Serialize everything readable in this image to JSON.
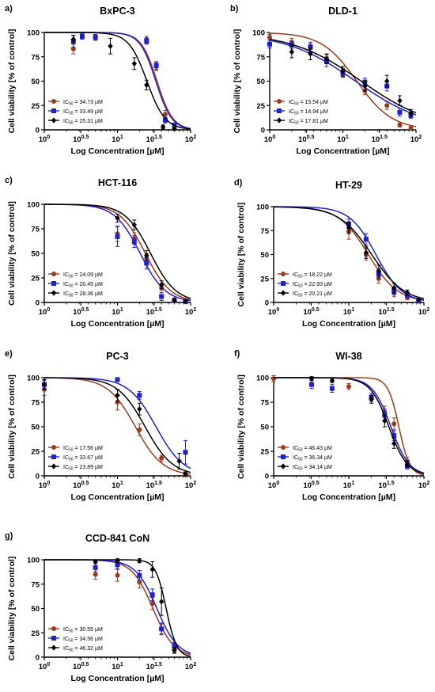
{
  "colors": {
    "series_red": "#9c3a1c",
    "series_blue": "#1f1fd6",
    "series_black": "#000000",
    "axis": "#000000"
  },
  "x_tick_labels": [
    "10^0",
    "10^0.5",
    "10^1",
    "10^1.5",
    "10^2"
  ],
  "chart_data": [
    {
      "panel": "a)",
      "title": "BxPC-3",
      "type": "scatter",
      "xlabel": "Log Concentration [µM]",
      "ylabel": "Cell viability [% of control]",
      "xscale": "log10",
      "xlim": [
        1,
        100
      ],
      "ylim": [
        0,
        100
      ],
      "yticks": [
        0,
        25,
        50,
        75,
        100
      ],
      "xticks": [
        1,
        3.16,
        10,
        31.6,
        100
      ],
      "legend_position": "bottom-left",
      "series": [
        {
          "legend": "IC50 = 34.73 µM",
          "ic50": 34.73,
          "hill": 4.0,
          "points": [
            [
              2.5,
              83,
              5
            ],
            [
              5,
              95,
              3
            ],
            [
              25,
              93,
              3
            ],
            [
              34,
              65,
              4
            ],
            [
              45,
              16,
              4
            ],
            [
              60,
              4,
              2
            ]
          ]
        },
        {
          "legend": "IC50 = 33.49 µM",
          "ic50": 33.49,
          "hill": 4.0,
          "points": [
            [
              2.5,
              91,
              6
            ],
            [
              3.3,
              96,
              3
            ],
            [
              5,
              95,
              3
            ],
            [
              25,
              91,
              3
            ],
            [
              34,
              66,
              4
            ],
            [
              45,
              10,
              3
            ],
            [
              60,
              5,
              2
            ]
          ]
        },
        {
          "legend": "IC50 = 25.31 µM",
          "ic50": 25.31,
          "hill": 3.5,
          "points": [
            [
              2.5,
              93,
              4
            ],
            [
              8,
              86,
              8
            ],
            [
              17,
              68,
              6
            ],
            [
              25,
              46,
              5
            ],
            [
              42,
              3,
              2
            ],
            [
              60,
              1,
              1
            ]
          ]
        }
      ]
    },
    {
      "panel": "b)",
      "title": "DLD-1",
      "type": "scatter",
      "xlabel": "Log Concentration  [µM]",
      "ylabel": "Cell viability [% of control]",
      "xscale": "log10",
      "xlim": [
        1,
        100
      ],
      "ylim": [
        0,
        100
      ],
      "yticks": [
        0,
        25,
        50,
        75,
        100
      ],
      "xticks": [
        1,
        3.16,
        10,
        31.6,
        100
      ],
      "legend_position": "bottom-left",
      "series": [
        {
          "legend": "IC50 = 15.54 µM",
          "ic50": 15.54,
          "hill": 1.8,
          "points": [
            [
              1,
              95,
              3
            ],
            [
              2,
              90,
              4
            ],
            [
              3.6,
              84,
              4
            ],
            [
              6,
              73,
              4
            ],
            [
              10,
              60,
              3
            ],
            [
              20,
              40,
              4
            ],
            [
              40,
              25,
              4
            ],
            [
              60,
              5,
              2
            ],
            [
              85,
              2,
              1
            ]
          ]
        },
        {
          "legend": "IC50 = 14.94 µM",
          "ic50": 14.94,
          "hill": 0.9,
          "points": [
            [
              1,
              88,
              4
            ],
            [
              2,
              87,
              4
            ],
            [
              3.6,
              85,
              5
            ],
            [
              6,
              70,
              5
            ],
            [
              10,
              58,
              4
            ],
            [
              20,
              49,
              4
            ],
            [
              40,
              45,
              5
            ],
            [
              60,
              18,
              4
            ],
            [
              85,
              15,
              3
            ]
          ]
        },
        {
          "legend": "IC50 = 17.81 µM",
          "ic50": 17.81,
          "hill": 0.9,
          "points": [
            [
              2,
              80,
              6
            ],
            [
              3.6,
              78,
              6
            ],
            [
              6,
              73,
              5
            ],
            [
              10,
              60,
              5
            ],
            [
              20,
              45,
              5
            ],
            [
              40,
              50,
              6
            ],
            [
              60,
              30,
              5
            ],
            [
              85,
              17,
              4
            ]
          ]
        }
      ]
    },
    {
      "panel": "c)",
      "title": "HCT-116",
      "type": "scatter",
      "xlabel": "Log Concentration [µM]",
      "ylabel": "Cell viability [% of control]",
      "xscale": "log10",
      "xlim": [
        1,
        100
      ],
      "ylim": [
        0,
        100
      ],
      "yticks": [
        0,
        25,
        50,
        75,
        100
      ],
      "xticks": [
        1,
        3.16,
        10,
        31.6,
        100
      ],
      "legend_position": "bottom-left",
      "series": [
        {
          "legend": "IC50 = 24.09 µM",
          "ic50": 24.09,
          "hill": 2.5,
          "points": [
            [
              10,
              70,
              8
            ],
            [
              17,
              65,
              6
            ],
            [
              25,
              45,
              5
            ],
            [
              40,
              15,
              3
            ],
            [
              60,
              3,
              1
            ],
            [
              85,
              1,
              1
            ]
          ]
        },
        {
          "legend": "IC50 = 20.45 µM",
          "ic50": 20.45,
          "hill": 2.5,
          "points": [
            [
              10,
              67,
              10
            ],
            [
              17,
              62,
              6
            ],
            [
              25,
              40,
              6
            ],
            [
              40,
              6,
              4
            ],
            [
              60,
              2,
              1
            ],
            [
              85,
              1,
              1
            ]
          ]
        },
        {
          "legend": "IC50 = 28.36 µM",
          "ic50": 28.36,
          "hill": 2.5,
          "points": [
            [
              10,
              86,
              4
            ],
            [
              17,
              79,
              5
            ],
            [
              25,
              48,
              5
            ],
            [
              40,
              18,
              4
            ],
            [
              60,
              2,
              1
            ],
            [
              85,
              1,
              1
            ]
          ]
        }
      ]
    },
    {
      "panel": "d)",
      "title": "HT-29",
      "type": "scatter",
      "xlabel": "Log Concentration [µM]",
      "ylabel": "Cell viability [% of control]",
      "xscale": "log10",
      "xlim": [
        1,
        100
      ],
      "ylim": [
        0,
        100
      ],
      "yticks": [
        0,
        25,
        50,
        75,
        100
      ],
      "xticks": [
        1,
        3.16,
        10,
        31.6,
        100
      ],
      "legend_position": "bottom-left",
      "series": [
        {
          "legend": "IC50 = 18.22 µM",
          "ic50": 18.22,
          "hill": 2.2,
          "points": [
            [
              10,
              74,
              8
            ],
            [
              17,
              50,
              6
            ],
            [
              25,
              25,
              5
            ],
            [
              40,
              10,
              4
            ],
            [
              60,
              5,
              2
            ],
            [
              85,
              1,
              1
            ]
          ]
        },
        {
          "legend": "IC50 = 22.93 µM",
          "ic50": 22.93,
          "hill": 2.5,
          "points": [
            [
              10,
              82,
              5
            ],
            [
              17,
              66,
              6
            ],
            [
              25,
              30,
              5
            ],
            [
              40,
              12,
              4
            ],
            [
              60,
              8,
              3
            ],
            [
              85,
              2,
              1
            ]
          ]
        },
        {
          "legend": "IC50 = 20.21 µM",
          "ic50": 20.21,
          "hill": 2.0,
          "points": [
            [
              10,
              78,
              6
            ],
            [
              17,
              52,
              6
            ],
            [
              25,
              33,
              6
            ],
            [
              40,
              15,
              5
            ],
            [
              60,
              10,
              3
            ],
            [
              85,
              3,
              1
            ]
          ]
        }
      ]
    },
    {
      "panel": "e)",
      "title": "PC-3",
      "type": "scatter",
      "xlabel": "Log Concentration [µM]",
      "ylabel": "Cell viability [% of control]",
      "xscale": "log10",
      "xlim": [
        1,
        100
      ],
      "ylim": [
        0,
        100
      ],
      "yticks": [
        0,
        25,
        50,
        75,
        100
      ],
      "xticks": [
        1,
        3.16,
        10,
        31.6,
        100
      ],
      "legend_position": "bottom-left",
      "series": [
        {
          "legend": "IC50 = 17.56 µM",
          "ic50": 17.56,
          "hill": 2.3,
          "points": [
            [
              1,
              88,
              6
            ],
            [
              10,
              75,
              8
            ],
            [
              20,
              47,
              6
            ],
            [
              40,
              18,
              3
            ],
            [
              85,
              1,
              1
            ]
          ]
        },
        {
          "legend": "IC50 = 33.67 µM",
          "ic50": 33.67,
          "hill": 2.3,
          "points": [
            [
              1,
              93,
              4
            ],
            [
              10,
              98,
              2
            ],
            [
              20,
              82,
              4
            ],
            [
              85,
              24,
              12
            ]
          ]
        },
        {
          "legend": "IC50 = 23.89 µM",
          "ic50": 23.89,
          "hill": 2.3,
          "points": [
            [
              1,
              93,
              5
            ],
            [
              10,
              82,
              6
            ],
            [
              20,
              68,
              6
            ],
            [
              70,
              15,
              8
            ],
            [
              85,
              2,
              2
            ]
          ]
        }
      ]
    },
    {
      "panel": "f)",
      "title": "WI-38",
      "type": "scatter",
      "xlabel": "Log Concentration [µM]",
      "ylabel": "Cell viability [% of control]",
      "xscale": "log10",
      "xlim": [
        1,
        100
      ],
      "ylim": [
        0,
        100
      ],
      "yticks": [
        0,
        25,
        50,
        75,
        100
      ],
      "xticks": [
        1,
        3.16,
        10,
        31.6,
        100
      ],
      "legend_position": "bottom-left",
      "series": [
        {
          "legend": "IC50 = 46.43 µM",
          "ic50": 46.43,
          "hill": 6.0,
          "points": [
            [
              1,
              99,
              3
            ],
            [
              10,
              91,
              3
            ],
            [
              20,
              80,
              4
            ],
            [
              30,
              65,
              6
            ],
            [
              40,
              53,
              6
            ],
            [
              60,
              15,
              4
            ]
          ]
        },
        {
          "legend": "IC50 = 36.34 µM",
          "ic50": 36.34,
          "hill": 3.5,
          "points": [
            [
              3.2,
              93,
              4
            ],
            [
              6,
              89,
              4
            ],
            [
              20,
              80,
              4
            ],
            [
              30,
              62,
              6
            ],
            [
              40,
              41,
              5
            ],
            [
              60,
              10,
              3
            ]
          ]
        },
        {
          "legend": "IC50 = 34.14 µM",
          "ic50": 34.14,
          "hill": 3.5,
          "points": [
            [
              3.2,
              99,
              2
            ],
            [
              6,
              97,
              2
            ],
            [
              20,
              78,
              4
            ],
            [
              30,
              56,
              6
            ],
            [
              40,
              33,
              5
            ],
            [
              60,
              12,
              3
            ]
          ]
        }
      ]
    },
    {
      "panel": "g)",
      "title": "CCD-841 CoN",
      "type": "scatter",
      "xlabel": "Log Concentration [µM]",
      "ylabel": "Cell viability [% of control]",
      "xscale": "log10",
      "xlim": [
        1,
        100
      ],
      "ylim": [
        0,
        100
      ],
      "yticks": [
        0,
        25,
        50,
        75,
        100
      ],
      "xticks": [
        1,
        3.16,
        10,
        31.6,
        100
      ],
      "legend_position": "bottom-left",
      "series": [
        {
          "legend": "IC50 = 30.55 µM",
          "ic50": 30.55,
          "hill": 3.0,
          "points": [
            [
              5,
              85,
              5
            ],
            [
              10,
              84,
              6
            ],
            [
              20,
              77,
              6
            ],
            [
              30,
              55,
              6
            ],
            [
              40,
              29,
              5
            ],
            [
              60,
              8,
              3
            ]
          ]
        },
        {
          "legend": "IC50 = 34.56 µM",
          "ic50": 34.56,
          "hill": 3.0,
          "points": [
            [
              5,
              92,
              4
            ],
            [
              10,
              95,
              4
            ],
            [
              20,
              84,
              5
            ],
            [
              30,
              64,
              6
            ],
            [
              40,
              29,
              6
            ],
            [
              60,
              12,
              3
            ]
          ]
        },
        {
          "legend": "IC50 = 46.32 µM",
          "ic50": 46.32,
          "hill": 6.0,
          "points": [
            [
              5,
              98,
              2
            ],
            [
              10,
              99,
              2
            ],
            [
              20,
              99,
              2
            ],
            [
              30,
              90,
              8
            ],
            [
              40,
              57,
              14
            ],
            [
              60,
              7,
              3
            ]
          ]
        }
      ]
    }
  ]
}
